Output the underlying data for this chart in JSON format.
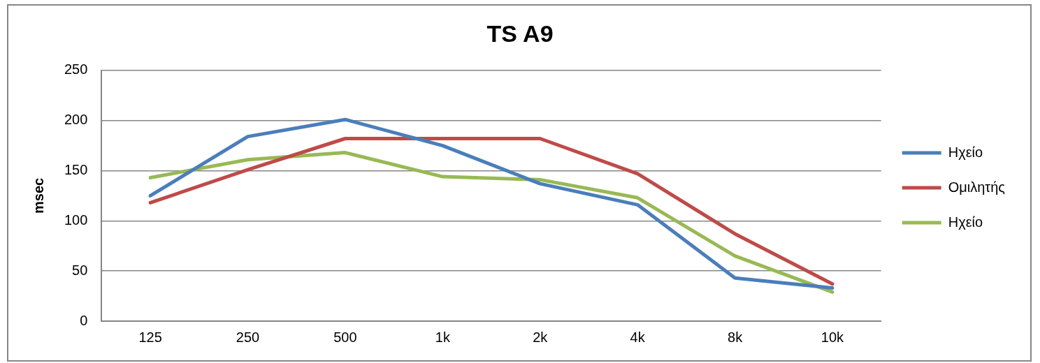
{
  "chart_data": {
    "type": "line",
    "title": "TS A9",
    "ylabel": "msec",
    "categories": [
      "125",
      "250",
      "500",
      "1k",
      "2k",
      "4k",
      "8k",
      "10k"
    ],
    "series": [
      {
        "name": "Ηχείο",
        "color": "#4a7ebb",
        "values": [
          125,
          184,
          201,
          175,
          137,
          116,
          43,
          33
        ]
      },
      {
        "name": "Ομιλητής",
        "color": "#be4b48",
        "values": [
          118,
          151,
          182,
          182,
          182,
          147,
          87,
          37
        ]
      },
      {
        "name": "Ηχείο",
        "color": "#98b954",
        "values": [
          143,
          161,
          168,
          144,
          141,
          123,
          65,
          29
        ]
      }
    ],
    "ylim": [
      0,
      250
    ],
    "yticks": [
      0,
      50,
      100,
      150,
      200,
      250
    ],
    "grid": "y",
    "legend": "right",
    "marker": "none",
    "line_style": "solid"
  }
}
